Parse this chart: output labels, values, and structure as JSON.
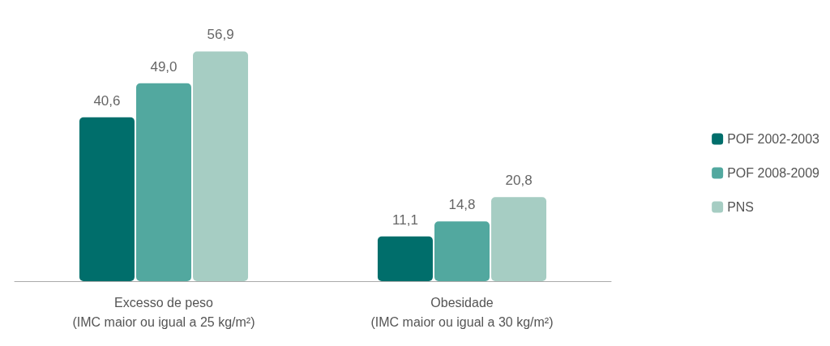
{
  "chart_data": {
    "type": "bar",
    "categories": [
      "Excesso de peso\n(IMC maior ou igual a 25 kg/m²)",
      "Obesidade\n(IMC maior ou igual a 30 kg/m²)"
    ],
    "series": [
      {
        "name": "POF 2002-2003",
        "color": "#006e6b",
        "values": [
          40.6,
          11.1
        ],
        "value_labels": [
          "40,6",
          "11,1"
        ]
      },
      {
        "name": "POF 2008-2009",
        "color": "#52a89f",
        "values": [
          49.0,
          14.8
        ],
        "value_labels": [
          "49,0",
          "14,8"
        ]
      },
      {
        "name": "PNS",
        "color": "#a6cdc3",
        "values": [
          56.9,
          20.8
        ],
        "value_labels": [
          "56,9",
          "20,8"
        ]
      }
    ],
    "legend": "right",
    "grid": false
  }
}
